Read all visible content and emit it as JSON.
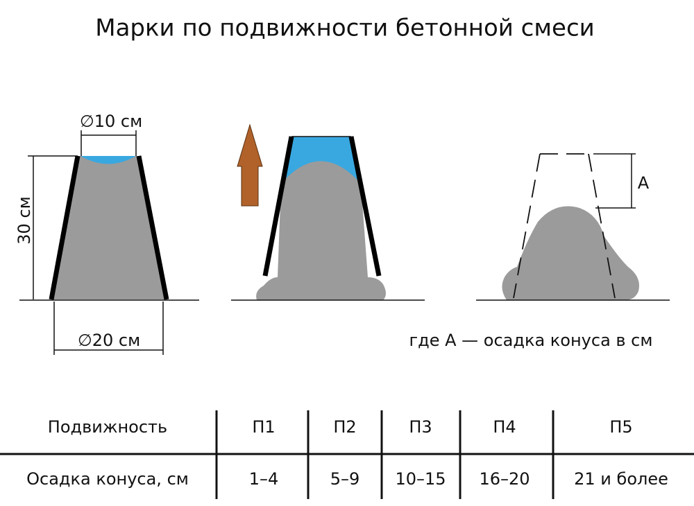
{
  "title": "Марки по подвижности бетонной смеси",
  "diagram": {
    "top_diameter": "∅10 см",
    "height": "30 см",
    "bottom_diameter": "∅20 см",
    "slump_label": "А",
    "note": "где А — осадка конуса в см"
  },
  "table": {
    "rows": [
      [
        "Подвижность",
        "П1",
        "П2",
        "П3",
        "П4",
        "П5"
      ],
      [
        "Осадка конуса, см",
        "1–4",
        "5–9",
        "10–15",
        "16–20",
        "21 и более"
      ]
    ]
  }
}
